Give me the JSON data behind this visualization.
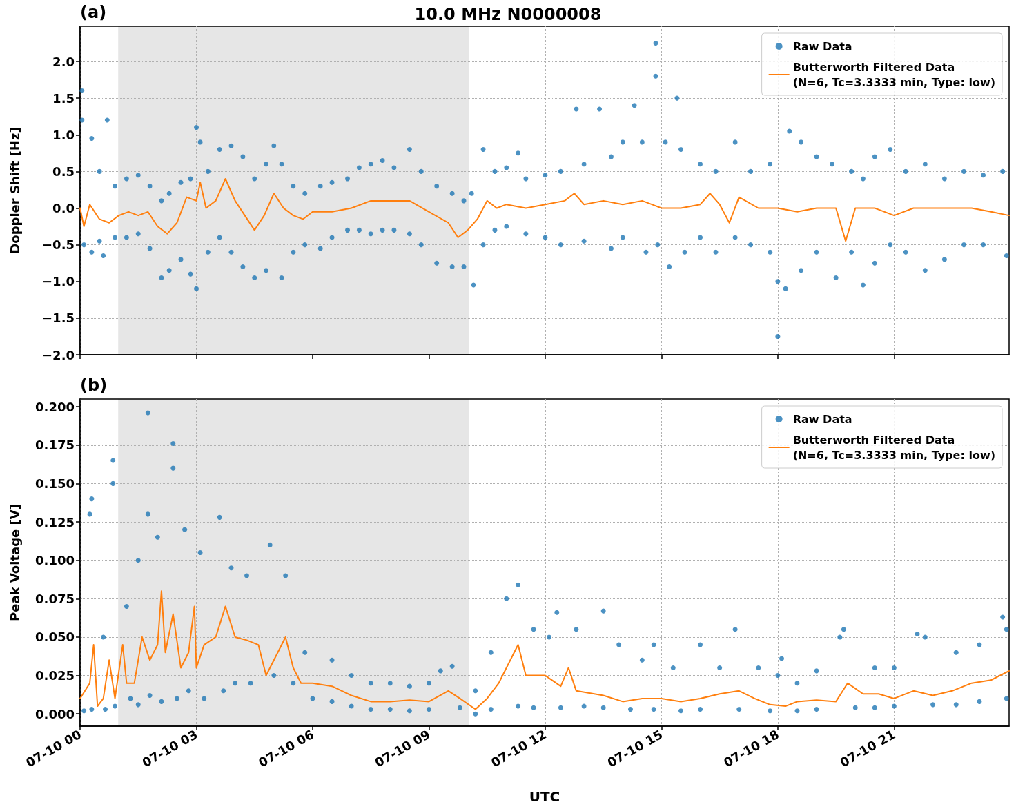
{
  "chart_data": [
    {
      "type": "scatter",
      "title": "10.0 MHz N0000008",
      "annotations": [
        "(a)"
      ],
      "ylabel": "Doppler Shift [Hz]",
      "xlim": [
        "--07-10T00:00",
        "--07-10T23:58"
      ],
      "ylim": [
        -2,
        2.48
      ],
      "xticks": [
        {
          "value": "--07-10T00:00",
          "label": "07-10 00"
        },
        {
          "value": "--07-10T03:00",
          "label": "07-10 03"
        },
        {
          "value": "--07-10T06:00",
          "label": "07-10 06"
        },
        {
          "value": "--07-10T09:00",
          "label": "07-10 09"
        },
        {
          "value": "--07-10T12:00",
          "label": "07-10 12"
        },
        {
          "value": "--07-10T15:00",
          "label": "07-10 15"
        },
        {
          "value": "--07-10T18:00",
          "label": "07-10 18"
        },
        {
          "value": "--07-10T21:00",
          "label": "07-10 21"
        }
      ],
      "yticks": [
        {
          "value": -2,
          "label": "−2.0"
        },
        {
          "value": -1.5,
          "label": "−1.5"
        },
        {
          "value": -1,
          "label": "−1.0"
        },
        {
          "value": -0.5,
          "label": "−0.5"
        },
        {
          "value": 0,
          "label": "0.0"
        },
        {
          "value": 0.5,
          "label": "0.5"
        },
        {
          "value": 1,
          "label": "1.0"
        },
        {
          "value": 1.5,
          "label": "1.5"
        },
        {
          "value": 2,
          "label": "2.0"
        }
      ],
      "tick_labels": "y",
      "grid": true,
      "legend": "top right",
      "bands": [
        {
          "axis": "x",
          "from": "--07-10T00:59",
          "to": "--07-10T10:02",
          "color": "#e6e6e6"
        }
      ],
      "series": [
        {
          "name": "Raw Data",
          "marker": "circle",
          "color": "#1f77b4",
          "x": [
            "--07-10T00:03",
            "--07-10T00:03",
            "--07-10T00:06",
            "--07-10T00:18",
            "--07-10T00:18",
            "--07-10T00:30",
            "--07-10T00:30",
            "--07-10T00:42",
            "--07-10T00:36",
            "--07-10T00:54",
            "--07-10T00:54",
            "--07-10T01:12",
            "--07-10T01:12",
            "--07-10T01:30",
            "--07-10T01:30",
            "--07-10T01:48",
            "--07-10T01:48",
            "--07-10T02:06",
            "--07-10T02:06",
            "--07-10T02:18",
            "--07-10T02:18",
            "--07-10T02:36",
            "--07-10T02:36",
            "--07-10T02:51",
            "--07-10T02:51",
            "--07-10T03:00",
            "--07-10T03:00",
            "--07-10T03:06",
            "--07-10T03:18",
            "--07-10T03:18",
            "--07-10T03:36",
            "--07-10T03:36",
            "--07-10T03:54",
            "--07-10T03:54",
            "--07-10T04:12",
            "--07-10T04:12",
            "--07-10T04:30",
            "--07-10T04:30",
            "--07-10T04:48",
            "--07-10T04:48",
            "--07-10T05:00",
            "--07-10T05:12",
            "--07-10T05:12",
            "--07-10T05:30",
            "--07-10T05:30",
            "--07-10T05:48",
            "--07-10T05:48",
            "--07-10T06:12",
            "--07-10T06:12",
            "--07-10T06:30",
            "--07-10T06:30",
            "--07-10T06:54",
            "--07-10T06:54",
            "--07-10T07:12",
            "--07-10T07:12",
            "--07-10T07:30",
            "--07-10T07:30",
            "--07-10T07:48",
            "--07-10T07:48",
            "--07-10T08:06",
            "--07-10T08:06",
            "--07-10T08:30",
            "--07-10T08:30",
            "--07-10T08:48",
            "--07-10T08:48",
            "--07-10T09:12",
            "--07-10T09:12",
            "--07-10T09:36",
            "--07-10T09:36",
            "--07-10T09:54",
            "--07-10T09:54",
            "--07-10T10:06",
            "--07-10T10:09",
            "--07-10T10:24",
            "--07-10T10:24",
            "--07-10T10:42",
            "--07-10T10:42",
            "--07-10T11:00",
            "--07-10T11:00",
            "--07-10T11:18",
            "--07-10T11:30",
            "--07-10T11:30",
            "--07-10T12:00",
            "--07-10T12:00",
            "--07-10T12:24",
            "--07-10T12:24",
            "--07-10T12:48",
            "--07-10T13:00",
            "--07-10T13:00",
            "--07-10T13:24",
            "--07-10T13:42",
            "--07-10T13:42",
            "--07-10T14:00",
            "--07-10T14:00",
            "--07-10T14:18",
            "--07-10T14:30",
            "--07-10T14:36",
            "--07-10T14:51",
            "--07-10T14:51",
            "--07-10T14:54",
            "--07-10T15:06",
            "--07-10T15:12",
            "--07-10T15:24",
            "--07-10T15:30",
            "--07-10T15:36",
            "--07-10T16:00",
            "--07-10T16:00",
            "--07-10T16:24",
            "--07-10T16:24",
            "--07-10T16:54",
            "--07-10T16:54",
            "--07-10T17:18",
            "--07-10T17:18",
            "--07-10T17:48",
            "--07-10T17:48",
            "--07-10T18:00",
            "--07-10T18:00",
            "--07-10T18:12",
            "--07-10T18:18",
            "--07-10T18:36",
            "--07-10T18:36",
            "--07-10T19:00",
            "--07-10T19:00",
            "--07-10T19:24",
            "--07-10T19:30",
            "--07-10T19:54",
            "--07-10T19:54",
            "--07-10T20:12",
            "--07-10T20:12",
            "--07-10T20:30",
            "--07-10T20:30",
            "--07-10T20:54",
            "--07-10T20:54",
            "--07-10T21:18",
            "--07-10T21:18",
            "--07-10T21:48",
            "--07-10T21:48",
            "--07-10T22:18",
            "--07-10T22:18",
            "--07-10T22:48",
            "--07-10T22:48",
            "--07-10T23:18",
            "--07-10T23:18",
            "--07-10T23:48",
            "--07-10T23:54"
          ],
          "values": [
            1.6,
            1.2,
            -0.5,
            0.95,
            -0.6,
            0.5,
            -0.45,
            1.2,
            -0.65,
            0.3,
            -0.4,
            0.4,
            -0.4,
            0.45,
            -0.35,
            0.3,
            -0.55,
            0.1,
            -0.95,
            0.2,
            -0.85,
            0.35,
            -0.7,
            0.4,
            -0.9,
            1.1,
            -1.1,
            0.9,
            0.5,
            -0.6,
            0.8,
            -0.4,
            0.85,
            -0.6,
            0.7,
            -0.8,
            0.4,
            -0.95,
            0.6,
            -0.85,
            0.85,
            0.6,
            -0.95,
            0.3,
            -0.6,
            0.2,
            -0.5,
            0.3,
            -0.55,
            0.35,
            -0.4,
            0.4,
            -0.3,
            0.55,
            -0.3,
            0.6,
            -0.35,
            0.65,
            -0.3,
            0.55,
            -0.3,
            0.8,
            -0.35,
            0.5,
            -0.5,
            0.3,
            -0.75,
            0.2,
            -0.8,
            0.1,
            -0.8,
            0.2,
            -1.05,
            0.8,
            -0.5,
            0.5,
            -0.3,
            0.55,
            -0.25,
            0.75,
            0.4,
            -0.35,
            0.45,
            -0.4,
            0.5,
            -0.5,
            1.35,
            0.6,
            -0.45,
            1.35,
            0.7,
            -0.55,
            0.9,
            -0.4,
            1.4,
            0.9,
            -0.6,
            2.25,
            1.8,
            -0.5,
            0.9,
            -0.8,
            1.5,
            0.8,
            -0.6,
            0.6,
            -0.4,
            0.5,
            -0.6,
            0.9,
            -0.4,
            0.5,
            -0.5,
            0.6,
            -0.6,
            -1.0,
            -1.75,
            -1.1,
            1.05,
            0.9,
            -0.85,
            0.7,
            -0.6,
            0.6,
            -0.95,
            0.5,
            -0.6,
            0.4,
            -1.05,
            0.7,
            -0.75,
            0.8,
            -0.5,
            0.5,
            -0.6,
            0.6,
            -0.85,
            0.4,
            -0.7,
            0.5,
            -0.5,
            0.45,
            -0.5,
            0.5,
            -0.65
          ]
        },
        {
          "name": "Butterworth Filtered Data\n(N=6, Tc=3.3333 min, Type: low)",
          "type": "line",
          "marker": "none",
          "line_style": "solid",
          "color": "#ff7f0e",
          "x": [
            "--07-10T00:00",
            "--07-10T00:06",
            "--07-10T00:15",
            "--07-10T00:30",
            "--07-10T00:45",
            "--07-10T01:00",
            "--07-10T01:15",
            "--07-10T01:30",
            "--07-10T01:45",
            "--07-10T02:00",
            "--07-10T02:15",
            "--07-10T02:30",
            "--07-10T02:45",
            "--07-10T03:00",
            "--07-10T03:06",
            "--07-10T03:15",
            "--07-10T03:30",
            "--07-10T03:45",
            "--07-10T04:00",
            "--07-10T04:15",
            "--07-10T04:30",
            "--07-10T04:45",
            "--07-10T05:00",
            "--07-10T05:15",
            "--07-10T05:30",
            "--07-10T05:45",
            "--07-10T06:00",
            "--07-10T06:30",
            "--07-10T07:00",
            "--07-10T07:30",
            "--07-10T08:00",
            "--07-10T08:30",
            "--07-10T09:00",
            "--07-10T09:30",
            "--07-10T09:45",
            "--07-10T10:00",
            "--07-10T10:15",
            "--07-10T10:30",
            "--07-10T10:45",
            "--07-10T11:00",
            "--07-10T11:30",
            "--07-10T12:00",
            "--07-10T12:30",
            "--07-10T12:45",
            "--07-10T13:00",
            "--07-10T13:30",
            "--07-10T14:00",
            "--07-10T14:30",
            "--07-10T14:45",
            "--07-10T15:00",
            "--07-10T15:30",
            "--07-10T16:00",
            "--07-10T16:15",
            "--07-10T16:30",
            "--07-10T16:45",
            "--07-10T17:00",
            "--07-10T17:30",
            "--07-10T18:00",
            "--07-10T18:30",
            "--07-10T19:00",
            "--07-10T19:30",
            "--07-10T19:45",
            "--07-10T20:00",
            "--07-10T20:30",
            "--07-10T21:00",
            "--07-10T21:30",
            "--07-10T22:00",
            "--07-10T22:30",
            "--07-10T23:00",
            "--07-10T23:30",
            "--07-10T23:58"
          ],
          "values": [
            0.0,
            -0.25,
            0.05,
            -0.15,
            -0.2,
            -0.1,
            -0.05,
            -0.1,
            -0.05,
            -0.25,
            -0.35,
            -0.2,
            0.15,
            0.1,
            0.35,
            0.0,
            0.1,
            0.4,
            0.1,
            -0.1,
            -0.3,
            -0.1,
            0.2,
            0.0,
            -0.1,
            -0.15,
            -0.05,
            -0.05,
            0.0,
            0.1,
            0.1,
            0.1,
            -0.05,
            -0.2,
            -0.4,
            -0.3,
            -0.15,
            0.1,
            0.0,
            0.05,
            0.0,
            0.05,
            0.1,
            0.2,
            0.05,
            0.1,
            0.05,
            0.1,
            0.05,
            0.0,
            0.0,
            0.05,
            0.2,
            0.05,
            -0.2,
            0.15,
            0.0,
            0.0,
            -0.05,
            0.0,
            0.0,
            -0.45,
            0.0,
            0.0,
            -0.1,
            0.0,
            0.0,
            0.0,
            0.0,
            -0.05,
            -0.1
          ]
        }
      ]
    },
    {
      "type": "scatter",
      "annotations": [
        "(b)"
      ],
      "xlabel": "UTC",
      "ylabel": "Peak Voltage [V]",
      "xlim": [
        "--07-10T00:00",
        "--07-10T23:58"
      ],
      "ylim": [
        -0.008,
        0.205
      ],
      "xticks": [
        {
          "value": "--07-10T00:00",
          "label": "07-10 00"
        },
        {
          "value": "--07-10T03:00",
          "label": "07-10 03"
        },
        {
          "value": "--07-10T06:00",
          "label": "07-10 06"
        },
        {
          "value": "--07-10T09:00",
          "label": "07-10 09"
        },
        {
          "value": "--07-10T12:00",
          "label": "07-10 12"
        },
        {
          "value": "--07-10T15:00",
          "label": "07-10 15"
        },
        {
          "value": "--07-10T18:00",
          "label": "07-10 18"
        },
        {
          "value": "--07-10T21:00",
          "label": "07-10 21"
        }
      ],
      "yticks": [
        {
          "value": 0,
          "label": "0.000"
        },
        {
          "value": 0.025,
          "label": "0.025"
        },
        {
          "value": 0.05,
          "label": "0.050"
        },
        {
          "value": 0.075,
          "label": "0.075"
        },
        {
          "value": 0.1,
          "label": "0.100"
        },
        {
          "value": 0.125,
          "label": "0.125"
        },
        {
          "value": 0.15,
          "label": "0.150"
        },
        {
          "value": 0.175,
          "label": "0.175"
        },
        {
          "value": 0.2,
          "label": "0.200"
        }
      ],
      "grid": true,
      "legend": "top right",
      "bands": [
        {
          "axis": "x",
          "from": "--07-10T00:59",
          "to": "--07-10T10:02",
          "color": "#e6e6e6"
        }
      ],
      "series": [
        {
          "name": "Raw Data",
          "marker": "circle",
          "color": "#1f77b4",
          "x": [
            "--07-10T00:06",
            "--07-10T00:15",
            "--07-10T00:18",
            "--07-10T00:18",
            "--07-10T00:36",
            "--07-10T00:39",
            "--07-10T00:51",
            "--07-10T00:51",
            "--07-10T00:54",
            "--07-10T01:12",
            "--07-10T01:18",
            "--07-10T01:30",
            "--07-10T01:30",
            "--07-10T01:45",
            "--07-10T01:45",
            "--07-10T01:48",
            "--07-10T02:00",
            "--07-10T02:06",
            "--07-10T02:24",
            "--07-10T02:24",
            "--07-10T02:30",
            "--07-10T02:42",
            "--07-10T02:48",
            "--07-10T03:06",
            "--07-10T03:12",
            "--07-10T03:36",
            "--07-10T03:42",
            "--07-10T03:54",
            "--07-10T04:00",
            "--07-10T04:18",
            "--07-10T04:24",
            "--07-10T04:54",
            "--07-10T05:00",
            "--07-10T05:18",
            "--07-10T05:30",
            "--07-10T05:48",
            "--07-10T06:00",
            "--07-10T06:30",
            "--07-10T06:30",
            "--07-10T07:00",
            "--07-10T07:00",
            "--07-10T07:30",
            "--07-10T07:30",
            "--07-10T08:00",
            "--07-10T08:00",
            "--07-10T08:30",
            "--07-10T08:30",
            "--07-10T09:00",
            "--07-10T09:00",
            "--07-10T09:18",
            "--07-10T09:36",
            "--07-10T09:48",
            "--07-10T10:12",
            "--07-10T10:12",
            "--07-10T10:36",
            "--07-10T10:36",
            "--07-10T11:00",
            "--07-10T11:18",
            "--07-10T11:18",
            "--07-10T11:42",
            "--07-10T11:42",
            "--07-10T12:06",
            "--07-10T12:18",
            "--07-10T12:24",
            "--07-10T12:48",
            "--07-10T13:00",
            "--07-10T13:30",
            "--07-10T13:30",
            "--07-10T13:54",
            "--07-10T14:12",
            "--07-10T14:30",
            "--07-10T14:48",
            "--07-10T14:48",
            "--07-10T15:18",
            "--07-10T15:30",
            "--07-10T16:00",
            "--07-10T16:00",
            "--07-10T16:30",
            "--07-10T16:54",
            "--07-10T17:00",
            "--07-10T17:30",
            "--07-10T17:48",
            "--07-10T18:00",
            "--07-10T18:06",
            "--07-10T18:30",
            "--07-10T18:30",
            "--07-10T19:00",
            "--07-10T19:00",
            "--07-10T19:36",
            "--07-10T19:42",
            "--07-10T20:00",
            "--07-10T20:30",
            "--07-10T20:30",
            "--07-10T21:00",
            "--07-10T21:00",
            "--07-10T21:36",
            "--07-10T21:48",
            "--07-10T22:00",
            "--07-10T22:36",
            "--07-10T22:36",
            "--07-10T23:12",
            "--07-10T23:12",
            "--07-10T23:48",
            "--07-10T23:54",
            "--07-10T23:54"
          ],
          "values": [
            0.002,
            0.13,
            0.14,
            0.003,
            0.05,
            0.003,
            0.165,
            0.15,
            0.005,
            0.07,
            0.01,
            0.1,
            0.006,
            0.13,
            0.196,
            0.012,
            0.115,
            0.008,
            0.176,
            0.16,
            0.01,
            0.12,
            0.015,
            0.105,
            0.01,
            0.128,
            0.015,
            0.095,
            0.02,
            0.09,
            0.02,
            0.11,
            0.025,
            0.09,
            0.02,
            0.04,
            0.01,
            0.035,
            0.008,
            0.025,
            0.005,
            0.02,
            0.003,
            0.02,
            0.003,
            0.018,
            0.002,
            0.02,
            0.003,
            0.028,
            0.031,
            0.004,
            0.015,
            0.0,
            0.04,
            0.003,
            0.075,
            0.084,
            0.005,
            0.055,
            0.004,
            0.05,
            0.066,
            0.004,
            0.055,
            0.005,
            0.067,
            0.004,
            0.045,
            0.003,
            0.035,
            0.045,
            0.003,
            0.03,
            0.002,
            0.045,
            0.003,
            0.03,
            0.055,
            0.003,
            0.03,
            0.002,
            0.025,
            0.036,
            0.02,
            0.002,
            0.028,
            0.003,
            0.05,
            0.055,
            0.004,
            0.03,
            0.004,
            0.03,
            0.005,
            0.052,
            0.05,
            0.006,
            0.04,
            0.006,
            0.045,
            0.008,
            0.063,
            0.055,
            0.01
          ]
        },
        {
          "name": "Butterworth Filtered Data\n(N=6, Tc=3.3333 min, Type: low)",
          "type": "line",
          "marker": "none",
          "line_style": "solid",
          "color": "#ff7f0e",
          "x": [
            "--07-10T00:00",
            "--07-10T00:15",
            "--07-10T00:21",
            "--07-10T00:27",
            "--07-10T00:36",
            "--07-10T00:45",
            "--07-10T00:54",
            "--07-10T01:06",
            "--07-10T01:12",
            "--07-10T01:24",
            "--07-10T01:36",
            "--07-10T01:48",
            "--07-10T02:00",
            "--07-10T02:06",
            "--07-10T02:12",
            "--07-10T02:24",
            "--07-10T02:36",
            "--07-10T02:48",
            "--07-10T02:57",
            "--07-10T03:00",
            "--07-10T03:12",
            "--07-10T03:30",
            "--07-10T03:45",
            "--07-10T04:00",
            "--07-10T04:18",
            "--07-10T04:36",
            "--07-10T04:48",
            "--07-10T05:06",
            "--07-10T05:18",
            "--07-10T05:30",
            "--07-10T05:42",
            "--07-10T06:00",
            "--07-10T06:30",
            "--07-10T07:00",
            "--07-10T07:30",
            "--07-10T08:00",
            "--07-10T08:30",
            "--07-10T09:00",
            "--07-10T09:30",
            "--07-10T09:48",
            "--07-10T10:12",
            "--07-10T10:30",
            "--07-10T10:48",
            "--07-10T11:06",
            "--07-10T11:18",
            "--07-10T11:30",
            "--07-10T12:00",
            "--07-10T12:24",
            "--07-10T12:36",
            "--07-10T12:48",
            "--07-10T13:30",
            "--07-10T14:00",
            "--07-10T14:30",
            "--07-10T15:00",
            "--07-10T15:30",
            "--07-10T16:00",
            "--07-10T16:30",
            "--07-10T17:00",
            "--07-10T17:24",
            "--07-10T17:48",
            "--07-10T18:12",
            "--07-10T18:30",
            "--07-10T19:00",
            "--07-10T19:30",
            "--07-10T19:48",
            "--07-10T20:12",
            "--07-10T20:36",
            "--07-10T21:00",
            "--07-10T21:30",
            "--07-10T22:00",
            "--07-10T22:30",
            "--07-10T23:00",
            "--07-10T23:30",
            "--07-10T23:58"
          ],
          "values": [
            0.01,
            0.02,
            0.045,
            0.005,
            0.01,
            0.035,
            0.01,
            0.045,
            0.02,
            0.02,
            0.05,
            0.035,
            0.045,
            0.08,
            0.04,
            0.065,
            0.03,
            0.04,
            0.07,
            0.03,
            0.045,
            0.05,
            0.07,
            0.05,
            0.048,
            0.045,
            0.025,
            0.04,
            0.05,
            0.03,
            0.02,
            0.02,
            0.018,
            0.012,
            0.008,
            0.008,
            0.009,
            0.008,
            0.015,
            0.01,
            0.003,
            0.01,
            0.02,
            0.035,
            0.045,
            0.025,
            0.025,
            0.018,
            0.03,
            0.015,
            0.012,
            0.008,
            0.01,
            0.01,
            0.008,
            0.01,
            0.013,
            0.015,
            0.01,
            0.006,
            0.005,
            0.008,
            0.009,
            0.008,
            0.02,
            0.013,
            0.013,
            0.01,
            0.015,
            0.012,
            0.015,
            0.02,
            0.022,
            0.028
          ]
        }
      ]
    }
  ]
}
